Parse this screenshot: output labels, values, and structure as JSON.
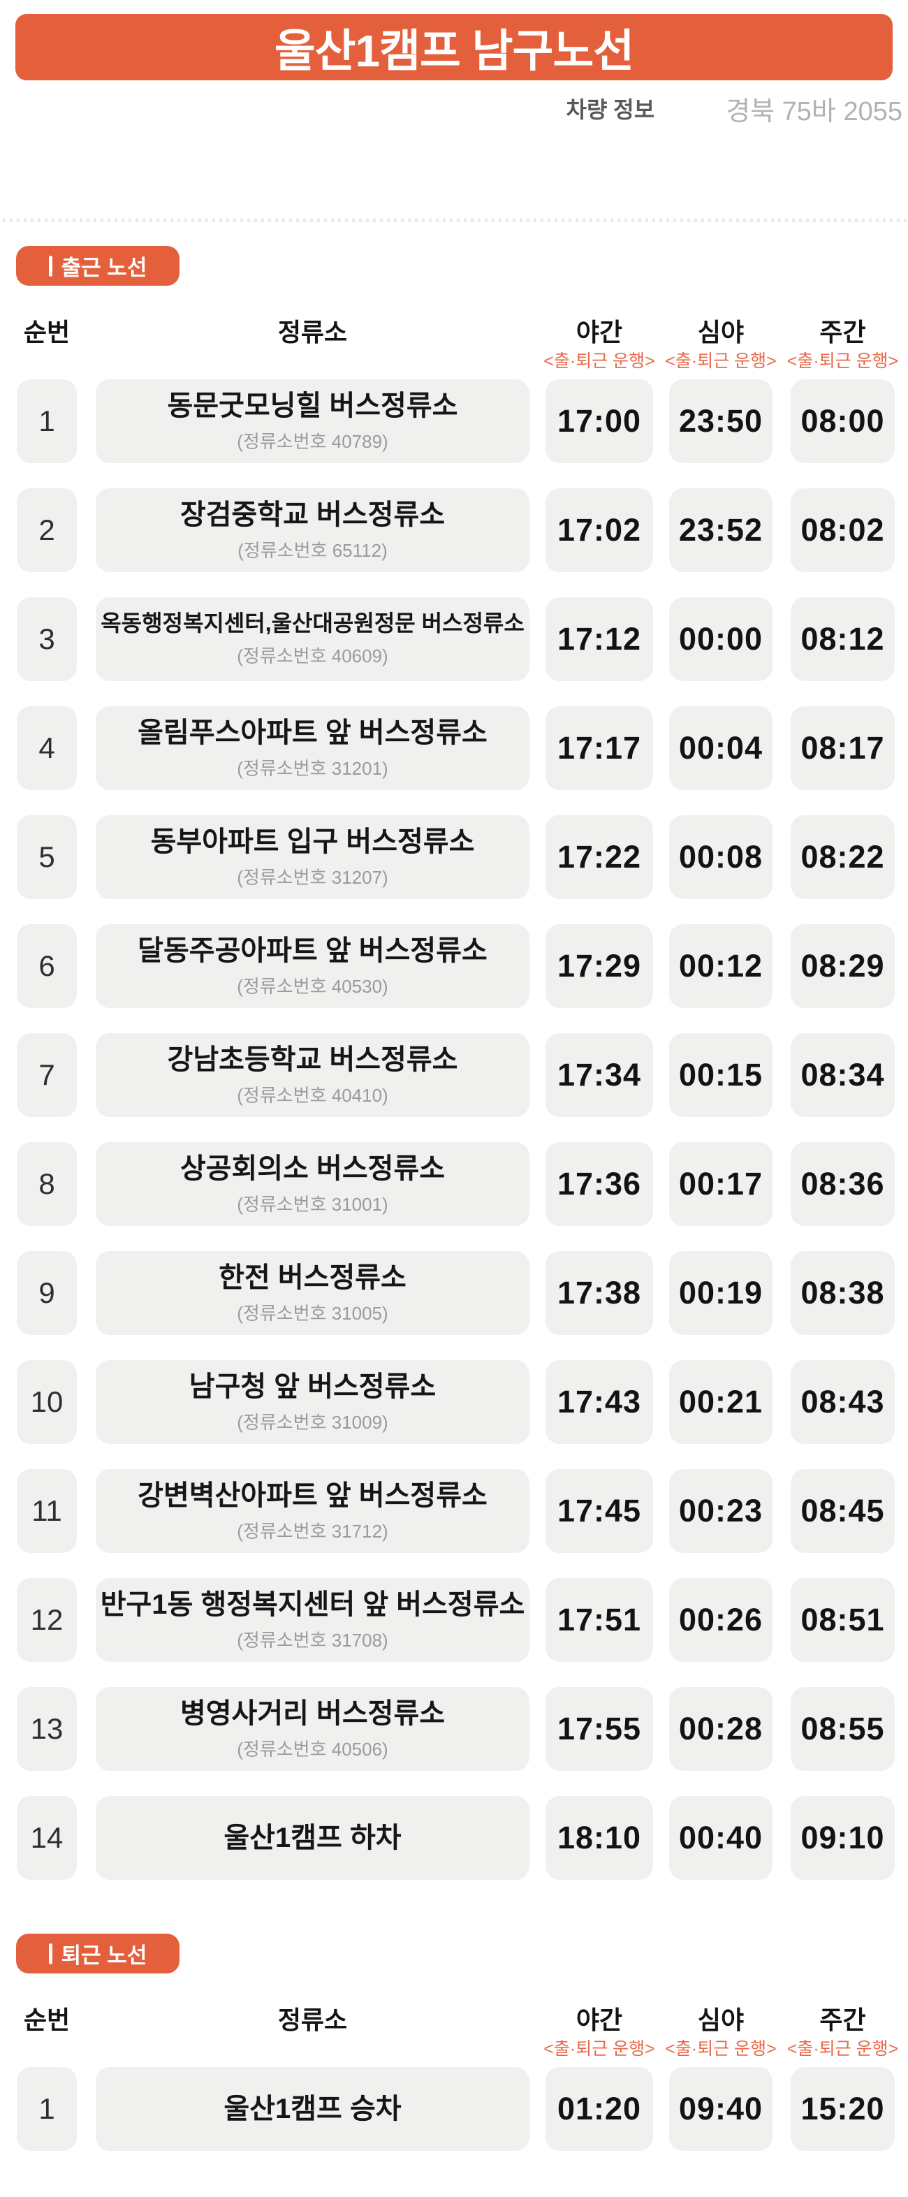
{
  "header": {
    "title": "울산1캠프 남구노선"
  },
  "vehicle_info": {
    "label": "차량 정보",
    "value": "경북 75바 2055"
  },
  "columns": {
    "seq": "순번",
    "stop": "정류소",
    "night": "야간",
    "late_night": "심야",
    "day": "주간",
    "operation_note": "<출·퇴근 운행>"
  },
  "colors": {
    "accent": "#e4603c",
    "accent-light": "#e9694a",
    "box-bg": "#f0f0ef",
    "text-dark": "#141414",
    "text-gray": "#9b9b9b",
    "plate-gray": "#b2b2b2",
    "label-gray": "#585858",
    "dot-gray": "#e9e9e9"
  },
  "sections": [
    {
      "badge": "출근 노선",
      "rows": [
        {
          "seq": "1",
          "stop_name": "동문굿모닝힐 버스정류소",
          "stop_code": "(정류소번호 40789)",
          "night": "17:00",
          "late_night": "23:50",
          "day": "08:00"
        },
        {
          "seq": "2",
          "stop_name": "장검중학교 버스정류소",
          "stop_code": "(정류소번호 65112)",
          "night": "17:02",
          "late_night": "23:52",
          "day": "08:02"
        },
        {
          "seq": "3",
          "stop_name": "옥동행정복지센터,울산대공원정문 버스정류소",
          "stop_code": "(정류소번호 40609)",
          "night": "17:12",
          "late_night": "00:00",
          "day": "08:12"
        },
        {
          "seq": "4",
          "stop_name": "올림푸스아파트 앞 버스정류소",
          "stop_code": "(정류소번호 31201)",
          "night": "17:17",
          "late_night": "00:04",
          "day": "08:17"
        },
        {
          "seq": "5",
          "stop_name": "동부아파트 입구 버스정류소",
          "stop_code": "(정류소번호 31207)",
          "night": "17:22",
          "late_night": "00:08",
          "day": "08:22"
        },
        {
          "seq": "6",
          "stop_name": "달동주공아파트 앞 버스정류소",
          "stop_code": "(정류소번호 40530)",
          "night": "17:29",
          "late_night": "00:12",
          "day": "08:29"
        },
        {
          "seq": "7",
          "stop_name": "강남초등학교 버스정류소",
          "stop_code": "(정류소번호 40410)",
          "night": "17:34",
          "late_night": "00:15",
          "day": "08:34"
        },
        {
          "seq": "8",
          "stop_name": "상공회의소 버스정류소",
          "stop_code": "(정류소번호 31001)",
          "night": "17:36",
          "late_night": "00:17",
          "day": "08:36"
        },
        {
          "seq": "9",
          "stop_name": "한전 버스정류소",
          "stop_code": "(정류소번호 31005)",
          "night": "17:38",
          "late_night": "00:19",
          "day": "08:38"
        },
        {
          "seq": "10",
          "stop_name": "남구청 앞 버스정류소",
          "stop_code": "(정류소번호 31009)",
          "night": "17:43",
          "late_night": "00:21",
          "day": "08:43"
        },
        {
          "seq": "11",
          "stop_name": "강변벽산아파트 앞 버스정류소",
          "stop_code": "(정류소번호 31712)",
          "night": "17:45",
          "late_night": "00:23",
          "day": "08:45"
        },
        {
          "seq": "12",
          "stop_name": "반구1동 행정복지센터 앞 버스정류소",
          "stop_code": "(정류소번호 31708)",
          "night": "17:51",
          "late_night": "00:26",
          "day": "08:51"
        },
        {
          "seq": "13",
          "stop_name": "병영사거리 버스정류소",
          "stop_code": "(정류소번호 40506)",
          "night": "17:55",
          "late_night": "00:28",
          "day": "08:55"
        },
        {
          "seq": "14",
          "stop_name": "울산1캠프 하차",
          "stop_code": "",
          "night": "18:10",
          "late_night": "00:40",
          "day": "09:10"
        }
      ]
    },
    {
      "badge": "퇴근 노선",
      "rows": [
        {
          "seq": "1",
          "stop_name": "울산1캠프 승차",
          "stop_code": "",
          "night": "01:20",
          "late_night": "09:40",
          "day": "15:20"
        }
      ]
    }
  ]
}
